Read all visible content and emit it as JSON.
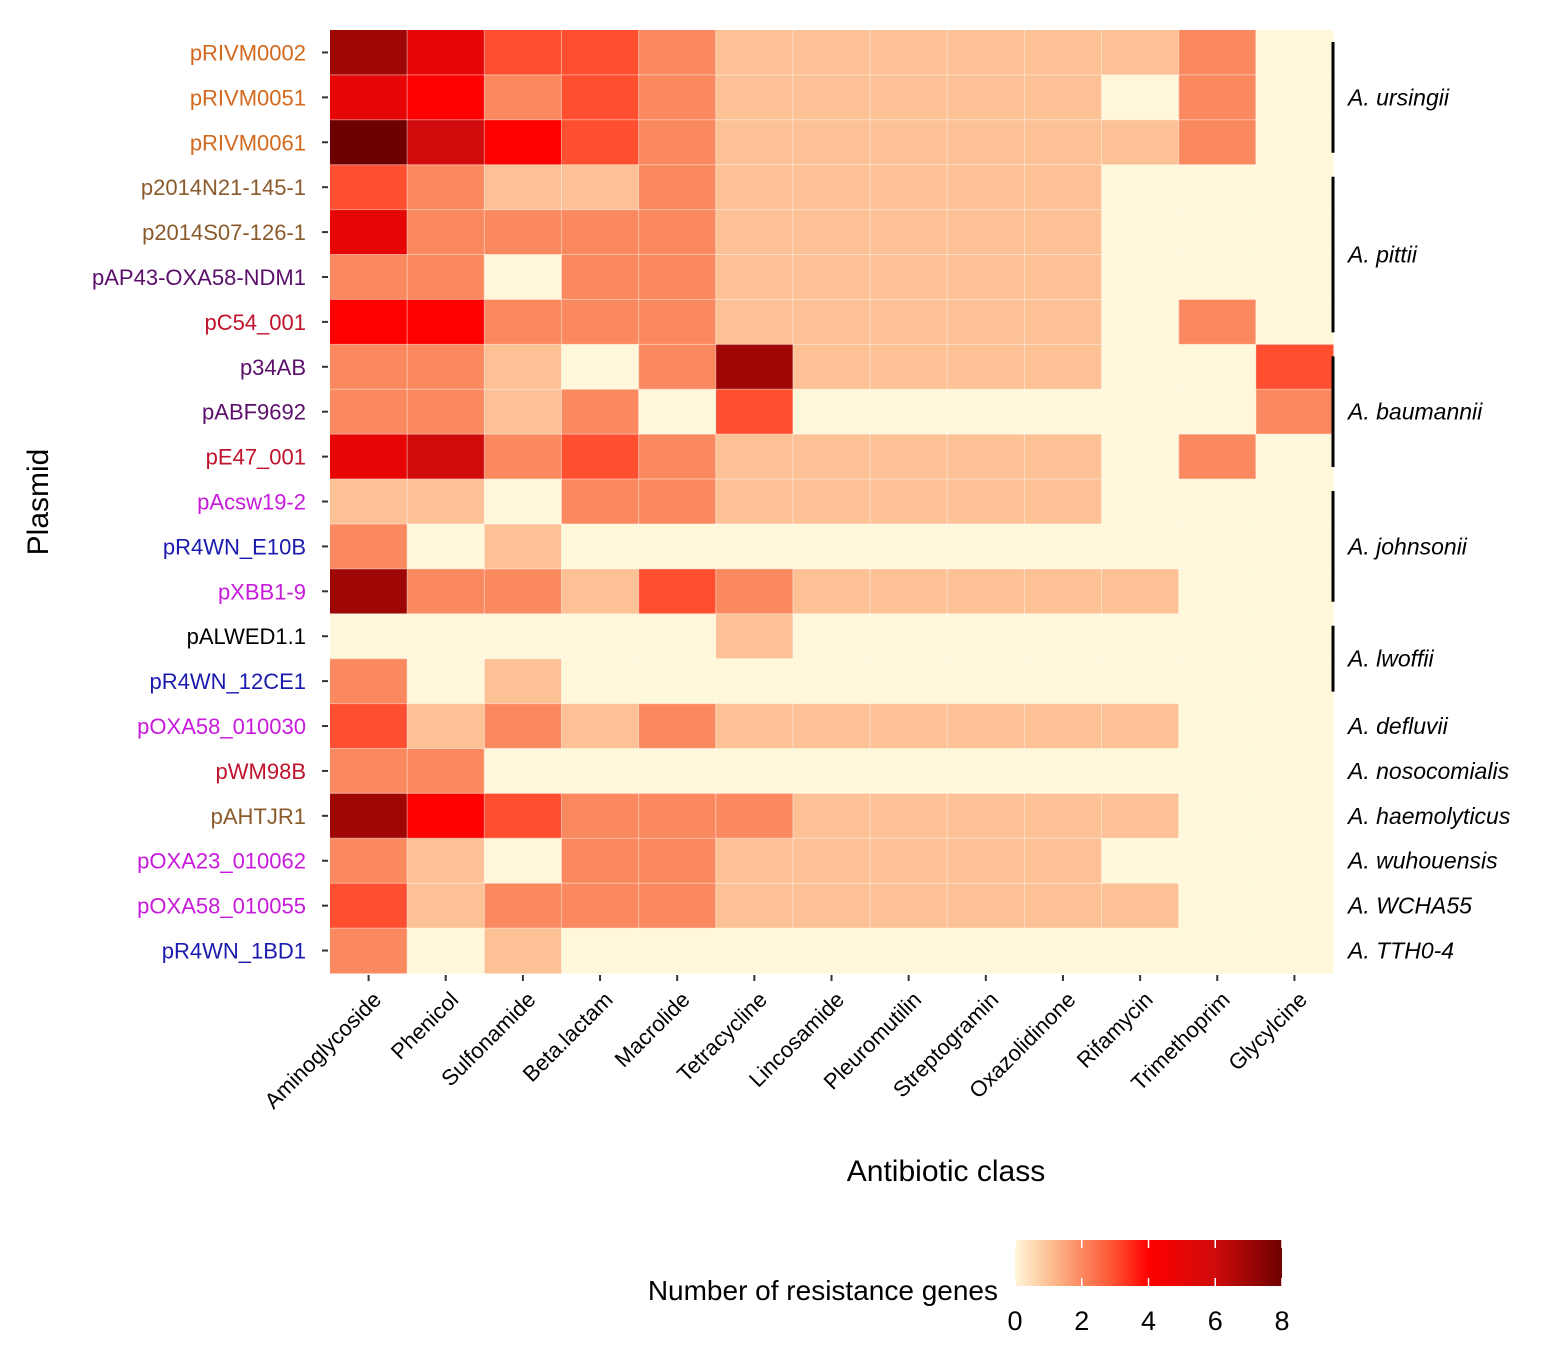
{
  "chart_data": {
    "type": "heatmap",
    "xlabel": "Antibiotic class",
    "ylabel": "Plasmid",
    "columns": [
      "Aminoglycoside",
      "Phenicol",
      "Sulfonamide",
      "Beta.lactam",
      "Macrolide",
      "Tetracycline",
      "Lincosamide",
      "Pleuromutilin",
      "Streptogramin",
      "Oxazolidinone",
      "Rifamycin",
      "Trimethoprim",
      "Glycylcine"
    ],
    "rows": [
      {
        "plasmid": "pRIVM0002",
        "color": "#D2691E",
        "values": [
          7,
          5,
          3,
          3,
          2,
          1,
          1,
          1,
          1,
          1,
          1,
          2,
          0
        ]
      },
      {
        "plasmid": "pRIVM0051",
        "color": "#D2691E",
        "values": [
          5,
          4,
          2,
          3,
          2,
          1,
          1,
          1,
          1,
          1,
          0,
          2,
          0
        ]
      },
      {
        "plasmid": "pRIVM0061",
        "color": "#D2691E",
        "values": [
          8,
          6,
          4,
          3,
          2,
          1,
          1,
          1,
          1,
          1,
          1,
          2,
          0
        ]
      },
      {
        "plasmid": "p2014N21-145-1",
        "color": "#8B5A2B",
        "values": [
          3,
          2,
          1,
          1,
          2,
          1,
          1,
          1,
          1,
          1,
          0,
          0,
          0
        ]
      },
      {
        "plasmid": "p2014S07-126-1",
        "color": "#8B5A2B",
        "values": [
          5,
          2,
          2,
          2,
          2,
          1,
          1,
          1,
          1,
          1,
          0,
          0,
          0
        ]
      },
      {
        "plasmid": "pAP43-OXA58-NDM1",
        "color": "#5B0F6B",
        "values": [
          2,
          2,
          0,
          2,
          2,
          1,
          1,
          1,
          1,
          1,
          0,
          0,
          0
        ]
      },
      {
        "plasmid": "pC54_001",
        "color": "#C0122C",
        "values": [
          4,
          4,
          2,
          2,
          2,
          1,
          1,
          1,
          1,
          1,
          0,
          2,
          0
        ]
      },
      {
        "plasmid": "p34AB",
        "color": "#5B0F6B",
        "values": [
          2,
          2,
          1,
          0,
          2,
          7,
          1,
          1,
          1,
          1,
          0,
          0,
          3
        ]
      },
      {
        "plasmid": "pABF9692",
        "color": "#5B0F6B",
        "values": [
          2,
          2,
          1,
          2,
          0,
          3,
          0,
          0,
          0,
          0,
          0,
          0,
          2
        ]
      },
      {
        "plasmid": "pE47_001",
        "color": "#C0122C",
        "values": [
          5,
          6,
          2,
          3,
          2,
          1,
          1,
          1,
          1,
          1,
          0,
          2,
          0
        ]
      },
      {
        "plasmid": "pAcsw19-2",
        "color": "#C71ADB",
        "values": [
          1,
          1,
          0,
          2,
          2,
          1,
          1,
          1,
          1,
          1,
          0,
          0,
          0
        ]
      },
      {
        "plasmid": "pR4WN_E10B",
        "color": "#1A1AAE",
        "values": [
          2,
          0,
          1,
          0,
          0,
          0,
          0,
          0,
          0,
          0,
          0,
          0,
          0
        ]
      },
      {
        "plasmid": "pXBB1-9",
        "color": "#C71ADB",
        "values": [
          7,
          2,
          2,
          1,
          3,
          2,
          1,
          1,
          1,
          1,
          1,
          0,
          0
        ]
      },
      {
        "plasmid": "pALWED1.1",
        "color": "#000000",
        "values": [
          0,
          0,
          0,
          0,
          0,
          1,
          0,
          0,
          0,
          0,
          0,
          0,
          0
        ]
      },
      {
        "plasmid": "pR4WN_12CE1",
        "color": "#1A1AAE",
        "values": [
          2,
          0,
          1,
          0,
          0,
          0,
          0,
          0,
          0,
          0,
          0,
          0,
          0
        ]
      },
      {
        "plasmid": "pOXA58_010030",
        "color": "#C71ADB",
        "values": [
          3,
          1,
          2,
          1,
          2,
          1,
          1,
          1,
          1,
          1,
          1,
          0,
          0
        ]
      },
      {
        "plasmid": "pWM98B",
        "color": "#C0122C",
        "values": [
          2,
          2,
          0,
          0,
          0,
          0,
          0,
          0,
          0,
          0,
          0,
          0,
          0
        ]
      },
      {
        "plasmid": "pAHTJR1",
        "color": "#8B5A2B",
        "values": [
          7,
          4,
          3,
          2,
          2,
          2,
          1,
          1,
          1,
          1,
          1,
          0,
          0
        ]
      },
      {
        "plasmid": "pOXA23_010062",
        "color": "#C71ADB",
        "values": [
          2,
          1,
          0,
          2,
          2,
          1,
          1,
          1,
          1,
          1,
          0,
          0,
          0
        ]
      },
      {
        "plasmid": "pOXA58_010055",
        "color": "#C71ADB",
        "values": [
          3,
          1,
          2,
          2,
          2,
          1,
          1,
          1,
          1,
          1,
          1,
          0,
          0
        ]
      },
      {
        "plasmid": "pR4WN_1BD1",
        "color": "#1A1AAE",
        "values": [
          2,
          0,
          1,
          0,
          0,
          0,
          0,
          0,
          0,
          0,
          0,
          0,
          0
        ]
      }
    ],
    "species_groups": [
      {
        "name": "A. ursingii",
        "rows": [
          0,
          2
        ],
        "bracket": true
      },
      {
        "name": "A. pittii",
        "rows": [
          3,
          6
        ],
        "bracket": true
      },
      {
        "name": "A. baumannii",
        "rows": [
          7,
          9
        ],
        "bracket": true
      },
      {
        "name": "A. johnsonii",
        "rows": [
          10,
          12
        ],
        "bracket": true
      },
      {
        "name": "A. lwoffii",
        "rows": [
          13,
          14
        ],
        "bracket": true
      },
      {
        "name": "A. defluvii",
        "rows": [
          15,
          15
        ],
        "bracket": false
      },
      {
        "name": "A. nosocomialis",
        "rows": [
          16,
          16
        ],
        "bracket": false
      },
      {
        "name": "A. haemolyticus",
        "rows": [
          17,
          17
        ],
        "bracket": false
      },
      {
        "name": "A. wuhouensis",
        "rows": [
          18,
          18
        ],
        "bracket": false
      },
      {
        "name": "A. WCHA55",
        "rows": [
          19,
          19
        ],
        "bracket": false
      },
      {
        "name": "A. TTH0-4",
        "rows": [
          20,
          20
        ],
        "bracket": false
      }
    ],
    "legend": {
      "title": "Number of resistance genes",
      "min": 0,
      "max": 8,
      "ticks": [
        0,
        2,
        4,
        6,
        8
      ],
      "placement": "bottom-right"
    },
    "color_scale": [
      {
        "value": 0,
        "color": "#FFF7D9"
      },
      {
        "value": 1,
        "color": "#FCC195"
      },
      {
        "value": 2,
        "color": "#FB8960"
      },
      {
        "value": 3,
        "color": "#FF4F30"
      },
      {
        "value": 4,
        "color": "#FF0000"
      },
      {
        "value": 6,
        "color": "#CF0B0B"
      },
      {
        "value": 8,
        "color": "#6E0000"
      }
    ]
  }
}
